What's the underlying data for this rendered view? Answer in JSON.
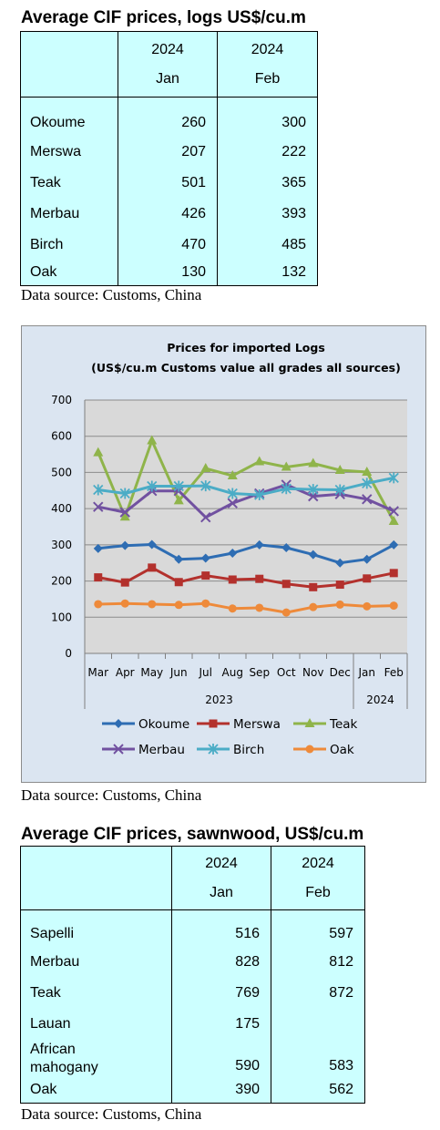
{
  "logs": {
    "title": "Average CIF prices, logs US$/cu.m",
    "columns": [
      {
        "year": "2024",
        "month": "Jan"
      },
      {
        "year": "2024",
        "month": "Feb"
      }
    ],
    "rows": [
      {
        "name": "Okoume",
        "jan": "260",
        "feb": "300"
      },
      {
        "name": "Merswa",
        "jan": "207",
        "feb": "222"
      },
      {
        "name": "Teak",
        "jan": "501",
        "feb": "365"
      },
      {
        "name": "Merbau",
        "jan": "426",
        "feb": "393"
      },
      {
        "name": "Birch",
        "jan": "470",
        "feb": "485"
      },
      {
        "name": "Oak",
        "jan": "130",
        "feb": "132"
      }
    ],
    "source": "Data source: Customs, China"
  },
  "chart_data": {
    "type": "line",
    "title": "Prices for imported Logs",
    "subtitle": "(US$/cu.m Customs value all grades all sources)",
    "categories": [
      "Mar",
      "Apr",
      "May",
      "Jun",
      "Jul",
      "Aug",
      "Sep",
      "Oct",
      "Nov",
      "Dec",
      "Jan",
      "Feb"
    ],
    "year_groups": [
      {
        "label": "2023",
        "span": 10
      },
      {
        "label": "2024",
        "span": 2
      }
    ],
    "ylim": [
      0,
      700
    ],
    "yticks": [
      0,
      100,
      200,
      300,
      400,
      500,
      600,
      700
    ],
    "grid": true,
    "legend_position": "bottom",
    "series": [
      {
        "name": "Okoume",
        "color": "#2e6db3",
        "marker": "diamond",
        "values": [
          290,
          298,
          301,
          260,
          263,
          277,
          300,
          292,
          273,
          250,
          260,
          300
        ]
      },
      {
        "name": "Merswa",
        "color": "#b3312d",
        "marker": "square",
        "values": [
          210,
          196,
          237,
          197,
          215,
          204,
          206,
          192,
          183,
          190,
          207,
          222
        ]
      },
      {
        "name": "Teak",
        "color": "#8fb44a",
        "marker": "triangle",
        "values": [
          555,
          377,
          588,
          422,
          511,
          491,
          530,
          515,
          525,
          506,
          501,
          365
        ]
      },
      {
        "name": "Merbau",
        "color": "#7151a0",
        "marker": "x",
        "values": [
          405,
          390,
          449,
          449,
          376,
          415,
          442,
          466,
          434,
          440,
          426,
          393
        ]
      },
      {
        "name": "Birch",
        "color": "#4bacc6",
        "marker": "star",
        "values": [
          452,
          442,
          462,
          462,
          463,
          442,
          438,
          455,
          453,
          452,
          470,
          485
        ]
      },
      {
        "name": "Oak",
        "color": "#ee8a3a",
        "marker": "circle",
        "values": [
          136,
          138,
          136,
          134,
          138,
          124,
          126,
          113,
          128,
          135,
          130,
          132
        ]
      }
    ]
  },
  "chart_source": "Data source: Customs, China",
  "sawnwood": {
    "title": "Average CIF prices, sawnwood, US$/cu.m",
    "columns": [
      {
        "year": "2024",
        "month": "Jan"
      },
      {
        "year": "2024",
        "month": "Feb"
      }
    ],
    "rows": [
      {
        "name": "Sapelli",
        "jan": "516",
        "feb": "597"
      },
      {
        "name": "Merbau",
        "jan": "828",
        "feb": "812"
      },
      {
        "name": "Teak",
        "jan": "769",
        "feb": "872"
      },
      {
        "name": "Lauan",
        "jan": "175",
        "feb": ""
      },
      {
        "name_line1": "African",
        "name_line2": "mahogany",
        "jan": "590",
        "feb": "583"
      },
      {
        "name": "Oak",
        "jan": "390",
        "feb": "562"
      }
    ],
    "source": "Data source: Customs, China"
  }
}
